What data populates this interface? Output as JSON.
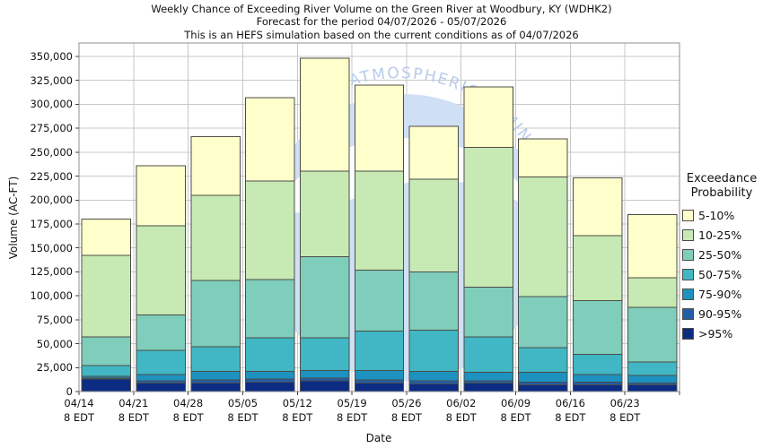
{
  "title": {
    "line1": "Weekly Chance of Exceeding River Volume on the Green River at Woodbury, KY (WDHK2)",
    "line2": "Forecast for the period 04/07/2026 - 05/07/2026",
    "line3": "This is an HEFS simulation based on the current conditions as of 04/07/2026"
  },
  "watermark": {
    "arc_text": "AND ATMOSPHERIC ADMINISTRATION",
    "visible_fragment": "ATMOSPHER",
    "text_color": "#b7cceb",
    "emblem_color": "#cfdff4",
    "swoosh_color": "#ffffff"
  },
  "chart_data": {
    "type": "bar",
    "stacked": true,
    "xlabel": "Date",
    "ylabel": "Volume (AC-FT)",
    "ylim": [
      0,
      364000
    ],
    "ytick_step": 25000,
    "ytick_labels": [
      "0",
      "25,000",
      "50,000",
      "75,000",
      "100,000",
      "125,000",
      "150,000",
      "175,000",
      "200,000",
      "225,000",
      "250,000",
      "275,000",
      "300,000",
      "325,000",
      "350,000"
    ],
    "categories": [
      "04/14",
      "04/21",
      "04/28",
      "05/05",
      "05/12",
      "05/19",
      "05/26",
      "06/02",
      "06/09",
      "06/16",
      "06/23"
    ],
    "x_tick_sublabel": "8 EDT",
    "grid": true,
    "bar_edge_color": "#4d4d46",
    "legend": {
      "title_line1": "Exceedance",
      "title_line2": "Probability",
      "position": "right",
      "order_top_to_bottom": [
        "5-10%",
        "10-25%",
        "25-50%",
        "50-75%",
        "75-90%",
        "90-95%",
        ">95%"
      ]
    },
    "series_note": "Stacked bottom-to-top. Values are cumulative stack tops in AC-FT (volume exceeded with at least the named probability).",
    "series": [
      {
        "name": ">95%",
        "color": "#0C2C84",
        "cumulative_tops": [
          13000,
          9000,
          9000,
          10000,
          11000,
          9000,
          8000,
          9000,
          7000,
          7000,
          7000
        ]
      },
      {
        "name": "90-95%",
        "color": "#225EA8",
        "cumulative_tops": [
          14000,
          11000,
          12000,
          13000,
          14000,
          12000,
          11000,
          11000,
          10000,
          10000,
          9000
        ]
      },
      {
        "name": "75-90%",
        "color": "#1D91C0",
        "cumulative_tops": [
          16000,
          18000,
          21000,
          21000,
          22000,
          22000,
          21000,
          20000,
          20000,
          18000,
          17000
        ]
      },
      {
        "name": "50-75%",
        "color": "#41B6C4",
        "cumulative_tops": [
          27000,
          43000,
          47000,
          56000,
          56000,
          63000,
          64000,
          57000,
          46000,
          39000,
          31000
        ]
      },
      {
        "name": "25-50%",
        "color": "#7FCDBB",
        "cumulative_tops": [
          57000,
          80000,
          116000,
          117000,
          141000,
          127000,
          125000,
          109000,
          99000,
          95000,
          88000
        ]
      },
      {
        "name": "10-25%",
        "color": "#C7E9B4",
        "cumulative_tops": [
          142000,
          173000,
          205000,
          220000,
          230000,
          230000,
          222000,
          255000,
          224000,
          163000,
          119000
        ]
      },
      {
        "name": "5-10%",
        "color": "#FFFFCC",
        "cumulative_tops": [
          180000,
          236000,
          266000,
          307000,
          348000,
          320000,
          277000,
          318000,
          264000,
          223000,
          185000
        ]
      }
    ]
  }
}
